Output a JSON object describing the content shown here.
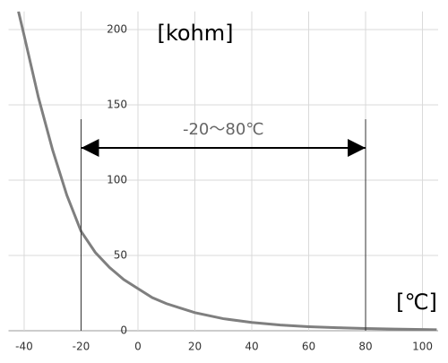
{
  "chart_data": {
    "type": "line",
    "x": [
      -42,
      -40,
      -35,
      -30,
      -25,
      -20,
      -15,
      -10,
      -5,
      0,
      5,
      10,
      15,
      20,
      25,
      30,
      40,
      50,
      60,
      70,
      80,
      90,
      100,
      105
    ],
    "values": [
      212,
      196,
      155,
      120,
      90,
      66,
      52,
      42,
      34,
      28,
      22,
      18,
      15,
      12,
      10,
      8,
      5.5,
      3.8,
      2.7,
      2,
      1.5,
      1.1,
      0.8,
      0.7
    ],
    "color": "#7f7f7f",
    "xlim": [
      -45.5,
      105.5
    ],
    "xticks": [
      -40,
      -20,
      0,
      20,
      40,
      60,
      80,
      100
    ],
    "ylim": [
      0,
      212
    ],
    "yticks": [
      0,
      50,
      100,
      150,
      200
    ],
    "grid": true,
    "y_unit_label": "[kohm]",
    "x_unit_label": "[℃]",
    "range": [
      -20,
      80
    ],
    "range_label": "-20～80℃"
  }
}
